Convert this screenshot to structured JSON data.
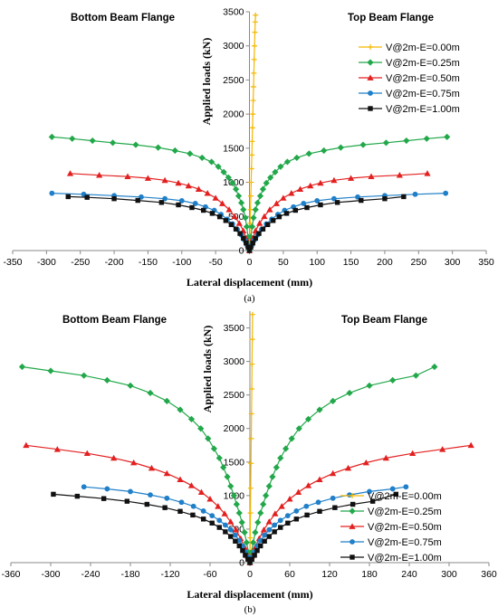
{
  "chart_data": [
    {
      "type": "line",
      "panel_label": "(a)",
      "xlabel": "Lateral displacement (mm)",
      "ylabel": "Applied loads (kN)",
      "left_title": "Bottom Beam Flange",
      "right_title": "Top Beam Flange",
      "xlim": [
        -350,
        350
      ],
      "ylim": [
        0,
        3500
      ],
      "xticks": [
        -350,
        -300,
        -250,
        -200,
        -150,
        -100,
        -50,
        0,
        50,
        100,
        150,
        200,
        250,
        300,
        350
      ],
      "yticks": [
        0,
        500,
        1000,
        1500,
        2000,
        2500,
        3000,
        3500
      ],
      "legend_position": "right",
      "series": [
        {
          "name": "V@2m-E=0.00m",
          "color": "#f5b800",
          "marker": "plus",
          "x": [
            0,
            0.5,
            1,
            1.5,
            2,
            2.5,
            3,
            3.5,
            4,
            4.5,
            5,
            5.5,
            6,
            6.5,
            7,
            7.5,
            8,
            8.5,
            9
          ],
          "y": [
            0,
            200,
            400,
            600,
            800,
            1000,
            1200,
            1400,
            1600,
            1800,
            2000,
            2200,
            2400,
            2600,
            2800,
            3000,
            3200,
            3350,
            3450
          ]
        },
        {
          "name": "V@2m-E=0.25m",
          "color": "#22a84a",
          "marker": "diamond",
          "x": [
            -292,
            -262,
            -232,
            -202,
            -168,
            -135,
            -110,
            -88,
            -70,
            -56,
            -46,
            -38,
            -31,
            -25,
            -20,
            -16,
            -12,
            -9,
            -6,
            -4,
            -2,
            0,
            2,
            4,
            6,
            9,
            12,
            16,
            20,
            25,
            31,
            38,
            46,
            56,
            70,
            88,
            110,
            135,
            168,
            202,
            232,
            262,
            292
          ],
          "y": [
            1665,
            1640,
            1610,
            1580,
            1550,
            1510,
            1465,
            1420,
            1360,
            1300,
            1230,
            1150,
            1070,
            990,
            900,
            800,
            700,
            600,
            480,
            350,
            200,
            0,
            200,
            350,
            480,
            600,
            700,
            800,
            900,
            990,
            1070,
            1150,
            1230,
            1300,
            1360,
            1420,
            1465,
            1510,
            1550,
            1580,
            1610,
            1640,
            1665
          ]
        },
        {
          "name": "V@2m-E=0.50m",
          "color": "#e32020",
          "marker": "triangle",
          "x": [
            -265,
            -222,
            -180,
            -150,
            -125,
            -105,
            -90,
            -75,
            -62,
            -50,
            -40,
            -30,
            -22,
            -15,
            -9,
            -5,
            -2,
            0,
            2,
            5,
            9,
            15,
            22,
            30,
            40,
            50,
            62,
            75,
            90,
            105,
            125,
            150,
            180,
            222,
            263
          ],
          "y": [
            1130,
            1105,
            1085,
            1060,
            1030,
            990,
            950,
            900,
            840,
            770,
            690,
            600,
            500,
            400,
            290,
            180,
            80,
            0,
            80,
            180,
            290,
            400,
            500,
            600,
            690,
            770,
            840,
            900,
            950,
            990,
            1030,
            1060,
            1085,
            1105,
            1130
          ]
        },
        {
          "name": "V@2m-E=0.75m",
          "color": "#1f7fc8",
          "marker": "circle",
          "x": [
            -292,
            -245,
            -200,
            -160,
            -125,
            -100,
            -80,
            -65,
            -52,
            -42,
            -33,
            -25,
            -18,
            -12,
            -7,
            -3,
            0,
            3,
            7,
            12,
            18,
            25,
            33,
            42,
            52,
            65,
            80,
            100,
            125,
            160,
            200,
            245,
            290
          ],
          "y": [
            840,
            825,
            805,
            785,
            760,
            730,
            690,
            640,
            590,
            530,
            460,
            390,
            310,
            230,
            150,
            70,
            0,
            70,
            150,
            230,
            310,
            390,
            460,
            530,
            590,
            640,
            690,
            730,
            760,
            785,
            805,
            825,
            840
          ]
        },
        {
          "name": "V@2m-E=1.00m",
          "color": "#111111",
          "marker": "square",
          "x": [
            -268,
            -240,
            -200,
            -165,
            -130,
            -105,
            -85,
            -68,
            -55,
            -44,
            -35,
            -27,
            -20,
            -14,
            -9,
            -5,
            -2,
            0,
            2,
            5,
            9,
            14,
            20,
            27,
            35,
            44,
            55,
            68,
            85,
            105,
            130,
            165,
            200,
            228
          ],
          "y": [
            790,
            780,
            760,
            735,
            705,
            670,
            630,
            590,
            545,
            495,
            440,
            380,
            315,
            250,
            180,
            110,
            50,
            0,
            50,
            110,
            180,
            250,
            315,
            380,
            440,
            495,
            545,
            590,
            630,
            670,
            705,
            735,
            760,
            790
          ]
        }
      ]
    },
    {
      "type": "line",
      "panel_label": "(b)",
      "xlabel": "Lateral displacement (mm)",
      "ylabel": "Applied loads (kN)",
      "left_title": "Bottom Beam Flange",
      "right_title": "Top Beam Flange",
      "xlim": [
        -360,
        360
      ],
      "ylim": [
        0,
        3750
      ],
      "xticks": [
        -360,
        -300,
        -240,
        -180,
        -120,
        -60,
        0,
        60,
        120,
        180,
        240,
        300,
        360
      ],
      "yticks": [
        0,
        500,
        1000,
        1500,
        2000,
        2500,
        3000,
        3500
      ],
      "legend_position": "bottom-right",
      "series": [
        {
          "name": "V@2m-E=0.00m",
          "color": "#f5b800",
          "marker": "plus",
          "x": [
            0,
            0.4,
            0.8,
            1.2,
            1.6,
            2,
            2.4,
            2.8,
            3.2,
            3.6,
            4
          ],
          "y": [
            0,
            370,
            740,
            1110,
            1480,
            1850,
            2220,
            2590,
            2960,
            3330,
            3700
          ]
        },
        {
          "name": "V@2m-E=0.25m",
          "color": "#22a84a",
          "marker": "diamond",
          "x": [
            -343,
            -300,
            -250,
            -215,
            -180,
            -150,
            -125,
            -105,
            -88,
            -74,
            -63,
            -54,
            -46,
            -40,
            -34,
            -29,
            -24,
            -20,
            -16,
            -12,
            -8,
            -5,
            -2,
            0,
            2,
            5,
            8,
            12,
            16,
            20,
            24,
            29,
            34,
            40,
            46,
            54,
            63,
            74,
            88,
            105,
            125,
            150,
            180,
            215,
            250,
            278
          ],
          "y": [
            2920,
            2860,
            2790,
            2720,
            2640,
            2530,
            2410,
            2280,
            2140,
            2000,
            1850,
            1700,
            1560,
            1420,
            1280,
            1140,
            1000,
            870,
            740,
            600,
            450,
            300,
            150,
            0,
            150,
            300,
            450,
            600,
            740,
            870,
            1000,
            1140,
            1280,
            1420,
            1560,
            1700,
            1850,
            2000,
            2140,
            2280,
            2410,
            2530,
            2640,
            2720,
            2790,
            2920
          ]
        },
        {
          "name": "V@2m-E=0.50m",
          "color": "#e32020",
          "marker": "triangle",
          "x": [
            -337,
            -290,
            -245,
            -205,
            -175,
            -148,
            -125,
            -105,
            -88,
            -73,
            -60,
            -48,
            -38,
            -29,
            -21,
            -14,
            -8,
            -3,
            0,
            3,
            8,
            14,
            21,
            29,
            38,
            48,
            60,
            73,
            88,
            105,
            125,
            148,
            175,
            205,
            245,
            290,
            333
          ],
          "y": [
            1750,
            1690,
            1630,
            1560,
            1490,
            1410,
            1330,
            1240,
            1150,
            1050,
            950,
            840,
            730,
            610,
            490,
            360,
            230,
            100,
            0,
            100,
            230,
            360,
            490,
            610,
            730,
            840,
            950,
            1050,
            1150,
            1240,
            1330,
            1410,
            1490,
            1560,
            1630,
            1690,
            1750
          ]
        },
        {
          "name": "V@2m-E=0.75m",
          "color": "#1f7fc8",
          "marker": "circle",
          "x": [
            -250,
            -215,
            -180,
            -150,
            -125,
            -103,
            -85,
            -70,
            -57,
            -46,
            -37,
            -29,
            -22,
            -16,
            -11,
            -7,
            -3,
            0,
            3,
            7,
            11,
            16,
            22,
            29,
            37,
            46,
            57,
            70,
            85,
            103,
            125,
            150,
            180,
            215,
            235
          ],
          "y": [
            1130,
            1100,
            1060,
            1010,
            960,
            900,
            840,
            770,
            700,
            630,
            560,
            490,
            410,
            330,
            250,
            160,
            80,
            0,
            80,
            160,
            250,
            330,
            410,
            490,
            560,
            630,
            700,
            770,
            840,
            900,
            960,
            1010,
            1060,
            1100,
            1130
          ]
        },
        {
          "name": "V@2m-E=1.00m",
          "color": "#111111",
          "marker": "square",
          "x": [
            -296,
            -260,
            -220,
            -185,
            -155,
            -128,
            -105,
            -86,
            -70,
            -57,
            -46,
            -37,
            -29,
            -22,
            -16,
            -11,
            -7,
            -3,
            0,
            3,
            7,
            11,
            16,
            22,
            29,
            37,
            46,
            57,
            70,
            86,
            105,
            128,
            155,
            185,
            220
          ],
          "y": [
            1020,
            990,
            955,
            915,
            870,
            820,
            765,
            710,
            650,
            590,
            525,
            460,
            390,
            320,
            250,
            180,
            110,
            50,
            0,
            50,
            110,
            180,
            250,
            320,
            390,
            460,
            525,
            590,
            650,
            710,
            765,
            820,
            870,
            915,
            1020
          ]
        }
      ]
    }
  ]
}
